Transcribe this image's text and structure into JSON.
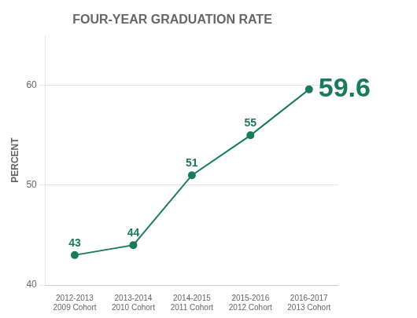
{
  "chart_data": {
    "type": "line",
    "title": "FOUR-YEAR GRADUATION RATE",
    "ylabel": "PERCENT",
    "categories": [
      [
        "2012-2013",
        "2009 Cohort"
      ],
      [
        "2013-2014",
        "2010 Cohort"
      ],
      [
        "2014-2015",
        "2011 Cohort"
      ],
      [
        "2015-2016",
        "2012 Cohort"
      ],
      [
        "2016-2017",
        "2013 Cohort"
      ]
    ],
    "values": [
      43,
      44,
      51,
      55,
      59.6
    ],
    "color": "#1a7a5e",
    "marker": "circle",
    "ylim": [
      40,
      65
    ],
    "yticks": [
      40,
      50,
      60
    ],
    "grid": true,
    "data_labels": true
  }
}
